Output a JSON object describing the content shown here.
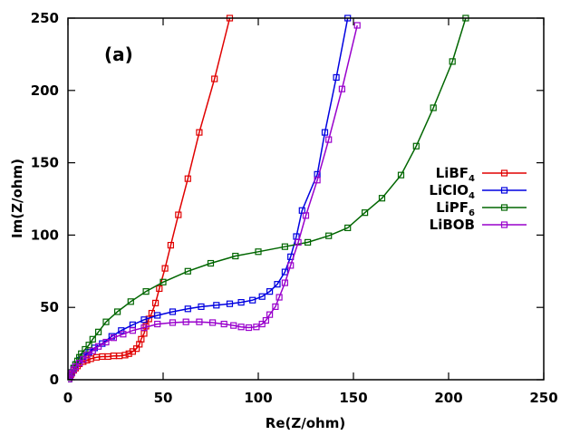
{
  "chart_data": {
    "type": "line",
    "annotation": "(a)",
    "xlabel": "Re(Z/ohm)",
    "ylabel": "Im(Z/ohm)",
    "xlim": [
      0,
      250
    ],
    "ylim": [
      0,
      250
    ],
    "xticks": [
      0,
      50,
      100,
      150,
      200,
      250
    ],
    "yticks": [
      0,
      50,
      100,
      150,
      200,
      250
    ],
    "legend_position": "right",
    "series": [
      {
        "name": "LiBF4",
        "label_base": "LiBF",
        "label_sub": "4",
        "color": "#e00000",
        "marker": "square",
        "points": [
          [
            0.5,
            0.5
          ],
          [
            1,
            2
          ],
          [
            1.5,
            3.5
          ],
          [
            2,
            5
          ],
          [
            3,
            6.5
          ],
          [
            4,
            8
          ],
          [
            5,
            9.5
          ],
          [
            6,
            11
          ],
          [
            8,
            12.5
          ],
          [
            10,
            13.5
          ],
          [
            12,
            14.5
          ],
          [
            15,
            15.5
          ],
          [
            18,
            16
          ],
          [
            21,
            16
          ],
          [
            24,
            16.5
          ],
          [
            27,
            16.5
          ],
          [
            30,
            17
          ],
          [
            32,
            18
          ],
          [
            34,
            19.5
          ],
          [
            36,
            21.5
          ],
          [
            37.5,
            24.5
          ],
          [
            38.5,
            28
          ],
          [
            40,
            32
          ],
          [
            41,
            37
          ],
          [
            42.5,
            42
          ],
          [
            44,
            46
          ],
          [
            46,
            53
          ],
          [
            48,
            63
          ],
          [
            51,
            77
          ],
          [
            54,
            93
          ],
          [
            58,
            114
          ],
          [
            63,
            139
          ],
          [
            69,
            171
          ],
          [
            77,
            208
          ],
          [
            85,
            250
          ]
        ]
      },
      {
        "name": "LiClO4",
        "label_base": "LiClO",
        "label_sub": "4",
        "color": "#0000e0",
        "marker": "square",
        "points": [
          [
            0.5,
            0.5
          ],
          [
            1,
            2.5
          ],
          [
            2,
            5
          ],
          [
            3,
            8
          ],
          [
            4,
            10.5
          ],
          [
            6,
            13.5
          ],
          [
            8,
            16
          ],
          [
            11,
            19
          ],
          [
            14,
            22
          ],
          [
            18,
            25
          ],
          [
            23,
            30
          ],
          [
            28,
            34
          ],
          [
            34,
            38
          ],
          [
            40,
            41.5
          ],
          [
            47,
            44.5
          ],
          [
            55,
            47
          ],
          [
            63,
            49
          ],
          [
            70,
            50.5
          ],
          [
            78,
            51.5
          ],
          [
            85,
            52.5
          ],
          [
            91,
            53.5
          ],
          [
            97,
            55
          ],
          [
            102,
            57.5
          ],
          [
            106,
            61
          ],
          [
            110,
            66
          ],
          [
            114,
            74.5
          ],
          [
            117,
            85
          ],
          [
            120,
            99
          ],
          [
            123,
            117
          ],
          [
            131,
            142
          ],
          [
            135,
            171
          ],
          [
            141,
            209
          ],
          [
            147,
            250
          ]
        ]
      },
      {
        "name": "LiPF6",
        "label_base": "LiPF",
        "label_sub": "6",
        "color": "#006600",
        "marker": "square",
        "points": [
          [
            0.5,
            0.5
          ],
          [
            1,
            2
          ],
          [
            2,
            5
          ],
          [
            3,
            8
          ],
          [
            4,
            10.5
          ],
          [
            5,
            13
          ],
          [
            6,
            15.5
          ],
          [
            7,
            18
          ],
          [
            9,
            21
          ],
          [
            11,
            24
          ],
          [
            13,
            28
          ],
          [
            16,
            33
          ],
          [
            20,
            40
          ],
          [
            26,
            47
          ],
          [
            33,
            54
          ],
          [
            41,
            61
          ],
          [
            50,
            67.5
          ],
          [
            63,
            75
          ],
          [
            75,
            80.5
          ],
          [
            88,
            85.5
          ],
          [
            100,
            88.5
          ],
          [
            114,
            92
          ],
          [
            126,
            95
          ],
          [
            137,
            99.5
          ],
          [
            147,
            105
          ],
          [
            156,
            115.5
          ],
          [
            165,
            125.5
          ],
          [
            175,
            141.5
          ],
          [
            183,
            161.5
          ],
          [
            192,
            188
          ],
          [
            202,
            220
          ],
          [
            209,
            250
          ]
        ]
      },
      {
        "name": "LiBOB",
        "label_base": "LiBOB",
        "label_sub": "",
        "color": "#9900cc",
        "marker": "square",
        "points": [
          [
            0.5,
            0.5
          ],
          [
            1,
            2
          ],
          [
            2,
            4.5
          ],
          [
            3,
            7
          ],
          [
            4,
            9
          ],
          [
            6,
            11.5
          ],
          [
            8,
            14
          ],
          [
            10,
            17
          ],
          [
            13,
            20
          ],
          [
            16,
            23
          ],
          [
            20,
            26
          ],
          [
            24,
            29
          ],
          [
            29,
            31.5
          ],
          [
            34,
            34
          ],
          [
            40,
            36
          ],
          [
            47,
            38.5
          ],
          [
            55,
            39.5
          ],
          [
            62,
            40
          ],
          [
            69,
            40
          ],
          [
            76,
            39.5
          ],
          [
            82,
            38.5
          ],
          [
            87,
            37.5
          ],
          [
            91,
            36.5
          ],
          [
            95,
            36
          ],
          [
            99,
            36.5
          ],
          [
            102,
            38.5
          ],
          [
            104,
            41
          ],
          [
            106,
            45
          ],
          [
            109,
            50.5
          ],
          [
            111,
            57
          ],
          [
            114,
            67
          ],
          [
            117,
            79
          ],
          [
            121,
            95
          ],
          [
            125,
            113.5
          ],
          [
            131,
            138
          ],
          [
            137,
            166
          ],
          [
            144,
            201
          ],
          [
            152,
            245
          ]
        ]
      }
    ]
  }
}
